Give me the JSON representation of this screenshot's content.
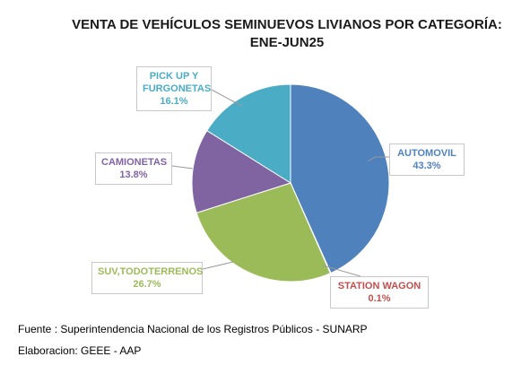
{
  "chart_data": {
    "type": "pie",
    "title_line1": "VENTA DE VEHÍCULOS SEMINUEVOS LIVIANOS POR CATEGORÍA:",
    "title_line2": "ENE-JUN25",
    "slices": [
      {
        "label": "AUTOMOVIL",
        "value": 43.3,
        "value_text": "43.3%",
        "color": "#4f81bd",
        "label_color": "#4f81bd"
      },
      {
        "label": "STATION WAGON",
        "value": 0.1,
        "value_text": "0.1%",
        "color": "#c0504d",
        "label_color": "#c0504d"
      },
      {
        "label": "SUV,TODOTERRENOS",
        "value": 26.7,
        "value_text": "26.7%",
        "color": "#9bbb59",
        "label_color": "#9bbb59"
      },
      {
        "label": "CAMIONETAS",
        "value": 13.8,
        "value_text": "13.8%",
        "color": "#8064a2",
        "label_color": "#8064a2"
      },
      {
        "label_lines": [
          "PICK UP Y",
          "FURGONETAS"
        ],
        "value": 16.1,
        "value_text": "16.1%",
        "color": "#4bacc6",
        "label_color": "#4bacc6"
      }
    ]
  },
  "footer": {
    "source": "Fuente : Superintendencia Nacional de los Registros Públicos - SUNARP",
    "credit": "Elaboracion: GEEE - AAP"
  }
}
